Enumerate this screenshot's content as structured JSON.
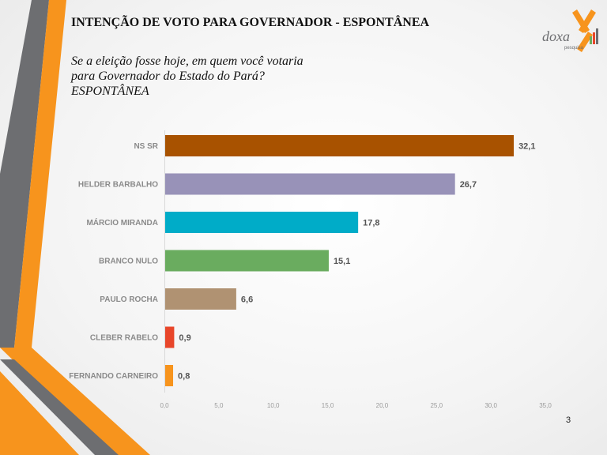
{
  "slide": {
    "title": "INTENÇÃO DE VOTO PARA GOVERNADOR - ESPONTÂNEA",
    "subtitle": "Se a eleição fosse hoje, em quem você votaria para Governador do Estado do Pará? ESPONTÂNEA",
    "page_number": "3"
  },
  "logo": {
    "brand": "doxa",
    "tagline": "pesquisa"
  },
  "colors": {
    "accent_orange": "#f7941d",
    "accent_gray": "#6d6e71"
  },
  "chart_data": {
    "type": "bar",
    "orientation": "horizontal",
    "categories": [
      "NS SR",
      "HELDER BARBALHO",
      "MÁRCIO MIRANDA",
      "BRANCO NULO",
      "PAULO ROCHA",
      "CLEBER RABELO",
      "FERNANDO CARNEIRO"
    ],
    "values": [
      32.1,
      26.7,
      17.8,
      15.1,
      6.6,
      0.9,
      0.8
    ],
    "value_labels": [
      "32,1",
      "26,7",
      "17,8",
      "15,1",
      "6,6",
      "0,9",
      "0,8"
    ],
    "colors": [
      "#a85200",
      "#9892b8",
      "#00acc8",
      "#6aac5f",
      "#b09272",
      "#e8462a",
      "#f7941d"
    ],
    "xlim": [
      0,
      35
    ],
    "ticks": [
      "0,0",
      "5,0",
      "10,0",
      "15,0",
      "20,0",
      "25,0",
      "30,0",
      "35,0"
    ],
    "grid": false,
    "legend": "none"
  }
}
